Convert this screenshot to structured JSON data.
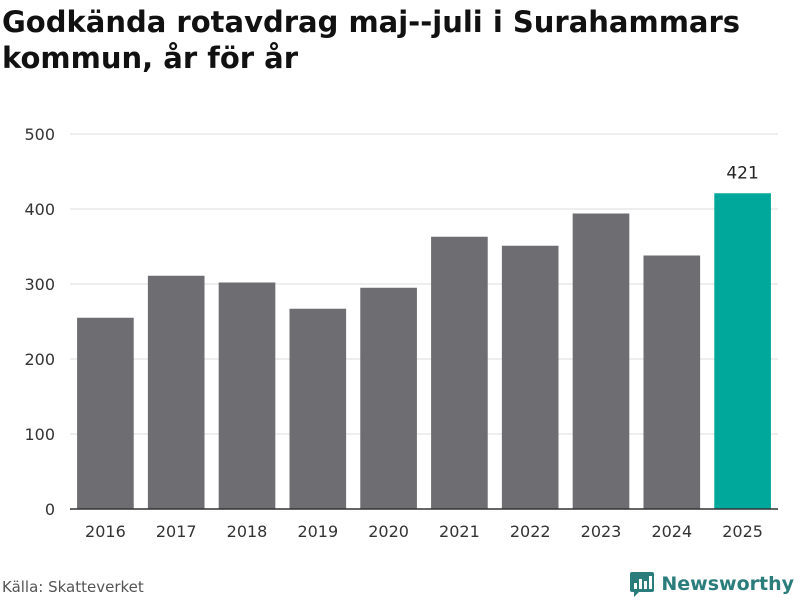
{
  "chart_data": {
    "type": "bar",
    "title": "Godkända rotavdrag maj--juli i Surahammars kommun, år för år",
    "categories": [
      "2016",
      "2017",
      "2018",
      "2019",
      "2020",
      "2021",
      "2022",
      "2023",
      "2024",
      "2025"
    ],
    "values": [
      255,
      311,
      302,
      267,
      295,
      363,
      351,
      394,
      338,
      421
    ],
    "ylim": [
      0,
      500
    ],
    "yticks": [
      0,
      100,
      200,
      300,
      400,
      500
    ],
    "grid": true,
    "bar_color": "#6e6d72",
    "highlight_color": "#00a79b",
    "highlight_index": 9,
    "data_labels": [
      {
        "index": 9,
        "text": "421"
      }
    ]
  },
  "footer": {
    "source": "Källa: Skatteverket",
    "brand": "Newsworthy",
    "brand_icon": "bar-chart-speech-icon"
  },
  "colors": {
    "brand": "#2a7d7b",
    "grid": "#dddddd",
    "axis": "#333333"
  }
}
